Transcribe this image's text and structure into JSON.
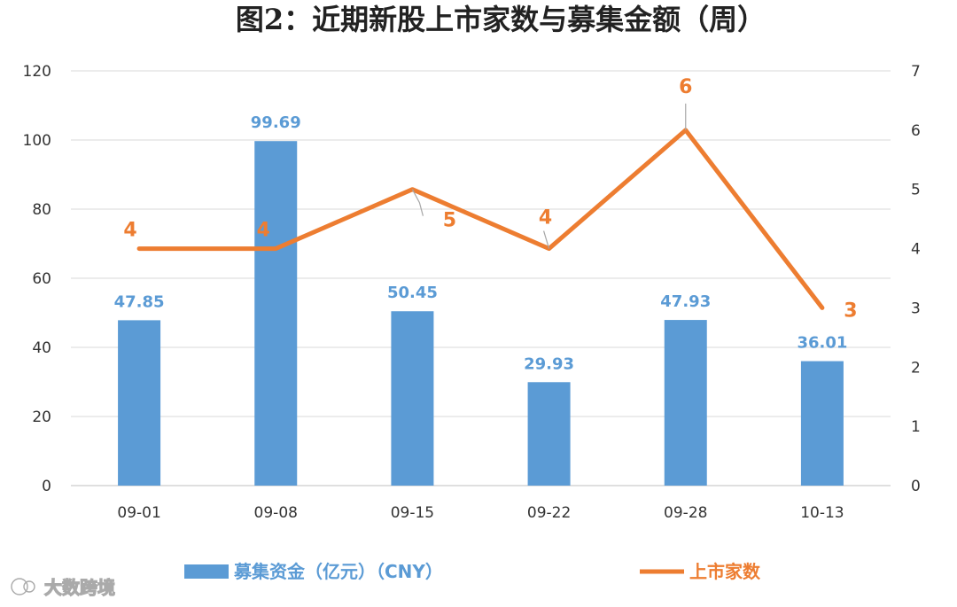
{
  "chart_data": {
    "type": "bar",
    "title": "图2：近期新股上市家数与募集金额（周）",
    "categories": [
      "09-01",
      "09-08",
      "09-15",
      "09-22",
      "09-28",
      "10-13"
    ],
    "series": [
      {
        "name": "募集资金（亿元）（CNY）",
        "type": "bar",
        "axis": "left",
        "color": "#5B9BD5",
        "values": [
          47.85,
          99.69,
          50.45,
          29.93,
          47.93,
          36.01
        ]
      },
      {
        "name": "上市家数",
        "type": "line",
        "axis": "right",
        "color": "#ED7D31",
        "values": [
          4,
          4,
          5,
          4,
          6,
          3
        ]
      }
    ],
    "y_left": {
      "min": 0,
      "max": 120,
      "ticks": [
        0,
        20,
        40,
        60,
        80,
        100,
        120
      ]
    },
    "y_right": {
      "min": 0,
      "max": 7,
      "ticks": [
        0,
        1,
        2,
        3,
        4,
        5,
        6,
        7
      ]
    },
    "grid": true,
    "legend": "bottom"
  },
  "watermark": "大数跨境"
}
